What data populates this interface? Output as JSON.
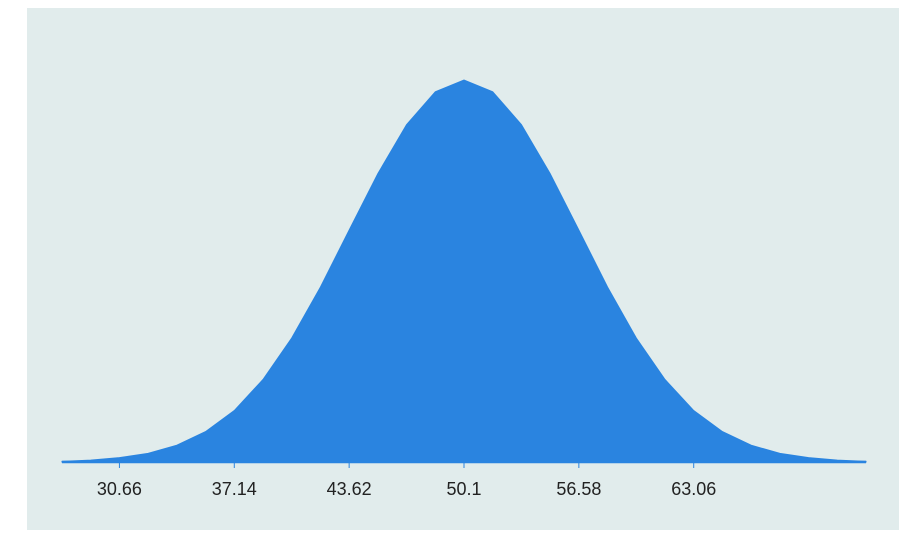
{
  "chart_data": {
    "type": "area",
    "x": [
      27.42,
      29.04,
      30.66,
      32.28,
      33.9,
      35.52,
      37.14,
      38.76,
      40.38,
      42,
      43.62,
      45.24,
      46.86,
      48.48,
      50.1,
      51.72,
      53.34,
      54.96,
      56.58,
      58.2,
      59.82,
      61.44,
      63.06,
      64.68,
      66.3,
      67.92,
      69.54,
      71.16,
      72.78
    ],
    "values": [
      0.0001,
      0.0003,
      0.0007,
      0.0014,
      0.0027,
      0.0049,
      0.0083,
      0.0133,
      0.02,
      0.0282,
      0.0374,
      0.0465,
      0.0544,
      0.0597,
      0.0616,
      0.0597,
      0.0544,
      0.0465,
      0.0374,
      0.0282,
      0.02,
      0.0133,
      0.0083,
      0.0049,
      0.0027,
      0.0014,
      0.0007,
      0.0003,
      0.0001
    ],
    "color": "#2a84e0",
    "xlim": [
      27.42,
      72.78
    ],
    "ylim": [
      0,
      0.0616
    ],
    "xticks": [
      30.66,
      37.14,
      43.62,
      50.1,
      56.58,
      63.06
    ]
  }
}
